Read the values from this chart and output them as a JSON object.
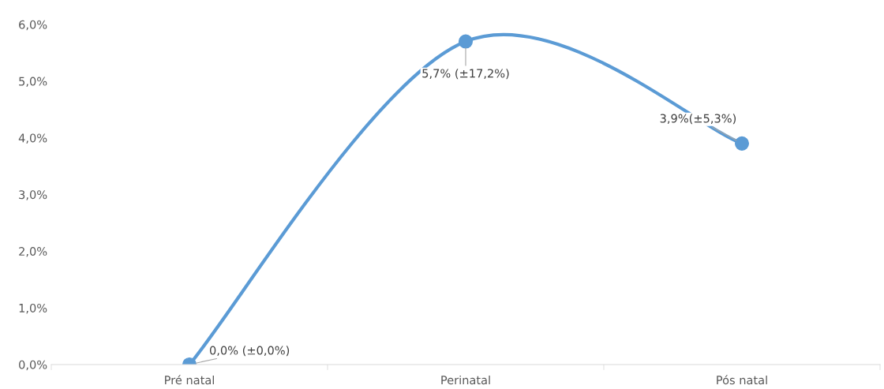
{
  "chart_data": {
    "type": "line",
    "categories": [
      "Pré natal",
      "Perinatal",
      "Pós natal"
    ],
    "series": [
      {
        "color": "#5b9bd5",
        "values": [
          0.0,
          5.7,
          3.9
        ],
        "value_labels": [
          "0,0% (±0,0%)",
          "5,7% (±17,2%)",
          "3,9%(±5,3%)"
        ]
      }
    ],
    "ylim": [
      0,
      6
    ],
    "yticks": [
      {
        "value": 0,
        "label": "0,0%"
      },
      {
        "value": 1,
        "label": "1,0%"
      },
      {
        "value": 2,
        "label": "2,0%"
      },
      {
        "value": 3,
        "label": "3,0%"
      },
      {
        "value": 4,
        "label": "4,0%"
      },
      {
        "value": 5,
        "label": "5,0%"
      },
      {
        "value": 6,
        "label": "6,0%"
      }
    ],
    "grid": false,
    "legend": false,
    "marker": "circle",
    "line_style": "solid"
  }
}
